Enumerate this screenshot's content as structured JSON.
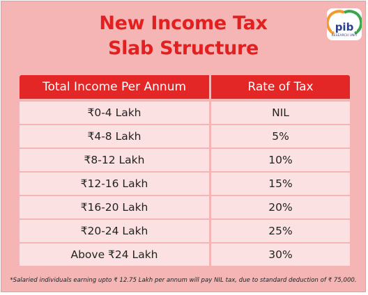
{
  "title": {
    "line1": "New Income Tax",
    "line2": "Slab Structure"
  },
  "logo": {
    "icon": "pib-logo-icon",
    "text": "pib",
    "subtext": "RESEARCH UNIT"
  },
  "table": {
    "headers": [
      "Total Income Per Annum",
      "Rate of Tax"
    ],
    "rows": [
      {
        "income": "₹0-4 Lakh",
        "rate": "NIL"
      },
      {
        "income": "₹4-8 Lakh",
        "rate": "5%"
      },
      {
        "income": "₹8-12 Lakh",
        "rate": "10%"
      },
      {
        "income": "₹12-16 Lakh",
        "rate": "15%"
      },
      {
        "income": "₹16-20 Lakh",
        "rate": "20%"
      },
      {
        "income": "₹20-24 Lakh",
        "rate": "25%"
      },
      {
        "income": "Above ₹24 Lakh",
        "rate": "30%"
      }
    ]
  },
  "footnote": "*Salaried individuals earning upto ₹ 12.75 Lakh per annum will pay NIL tax, due to standard deduction of ₹ 75,000.",
  "colors": {
    "background": "#f5b5b5",
    "accent_red": "#e32020",
    "header_fill": "#e32727",
    "row_fill": "#fbe1e1"
  }
}
